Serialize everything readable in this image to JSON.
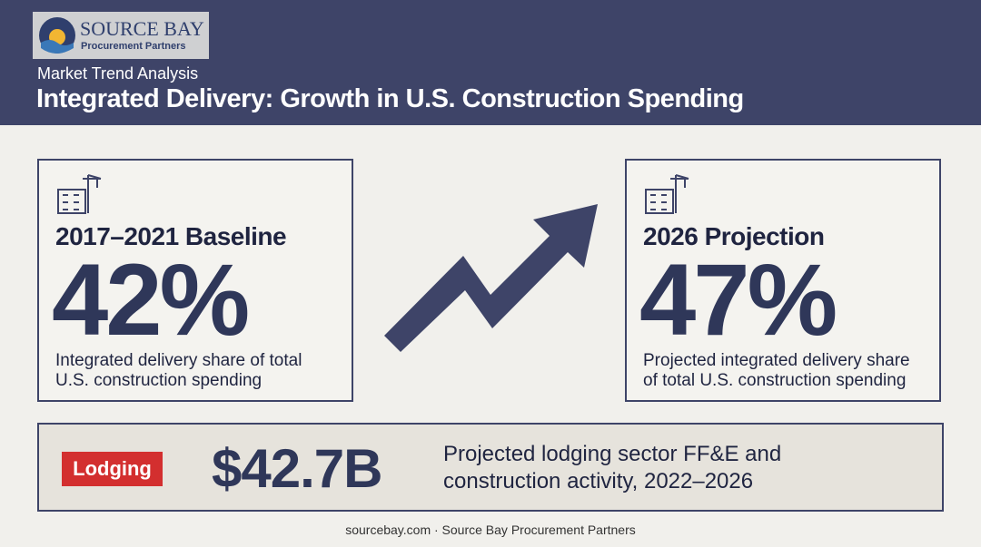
{
  "logo": {
    "name": "SOURCE BAY",
    "tagline": "Procurement Partners"
  },
  "header": {
    "subtitle": "Market Trend Analysis",
    "title": "Integrated Delivery: Growth in U.S. Construction Spending"
  },
  "cards": [
    {
      "heading": "2017–2021 Baseline",
      "value": "42%",
      "lines": [
        "Integrated delivery share of total",
        "U.S. construction spending"
      ]
    },
    {
      "heading": "2026 Projection",
      "value": "47%",
      "lines": [
        "Projected integrated delivery share",
        "of total U.S. construction spending"
      ]
    }
  ],
  "banner": {
    "tag": "Lodging",
    "value": "$42.7B",
    "lines": [
      "Projected lodging sector FF&E and",
      "construction activity, 2022–2026"
    ]
  },
  "footer": "sourcebay.com · Source Bay Procurement Partners"
}
